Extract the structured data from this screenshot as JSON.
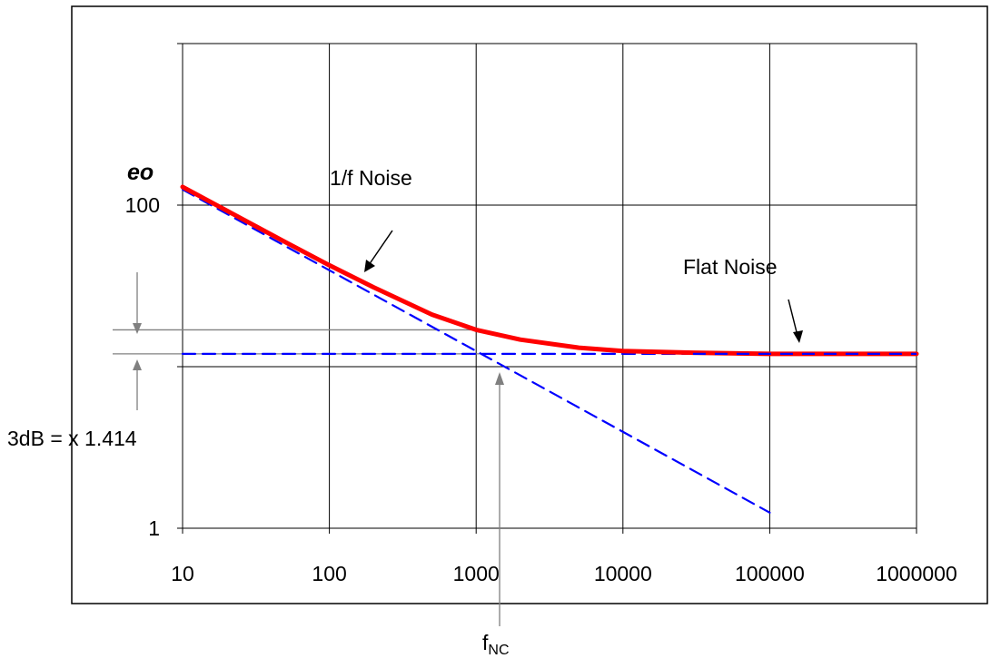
{
  "chart_data": {
    "type": "line",
    "xscale": "log",
    "yscale": "log",
    "xlim": [
      10,
      1000000
    ],
    "ylim": [
      1,
      1000
    ],
    "x_ticks": [
      "10",
      "100",
      "1000",
      "10000",
      "100000",
      "1000000"
    ],
    "y_ticks": [
      "1",
      "100"
    ],
    "ylabel": "eo",
    "grid": true,
    "series": [
      {
        "color": "#ff0000",
        "style": "solid",
        "x": [
          10,
          20,
          50,
          100,
          200,
          500,
          1000,
          2000,
          5000,
          10000,
          30000,
          100000,
          1000000
        ],
        "y": [
          129.7,
          92.4,
          59.1,
          42.4,
          31.0,
          21.0,
          16.9,
          14.7,
          13.1,
          12.5,
          12.2,
          12.0,
          12.0
        ]
      },
      {
        "color": "#0000ff",
        "style": "dashed",
        "x": [
          10,
          100000
        ],
        "y": [
          125,
          1.25
        ]
      },
      {
        "color": "#0000ff",
        "style": "dashed",
        "x": [
          10,
          1000000
        ],
        "y": [
          12.0,
          12.0
        ]
      }
    ],
    "annotations": {
      "one_over_f": "1/f Noise",
      "flat": "Flat Noise",
      "db3": "3dB = x 1.414",
      "fnc_main": "f",
      "fnc_sub": "NC"
    },
    "reference_levels": [
      16.9,
      12.0
    ],
    "fnc_x": 1400,
    "colors": {
      "curve": "#ff0000",
      "asymptote": "#0000ff",
      "grid": "#000000",
      "marker": "#808080"
    }
  }
}
